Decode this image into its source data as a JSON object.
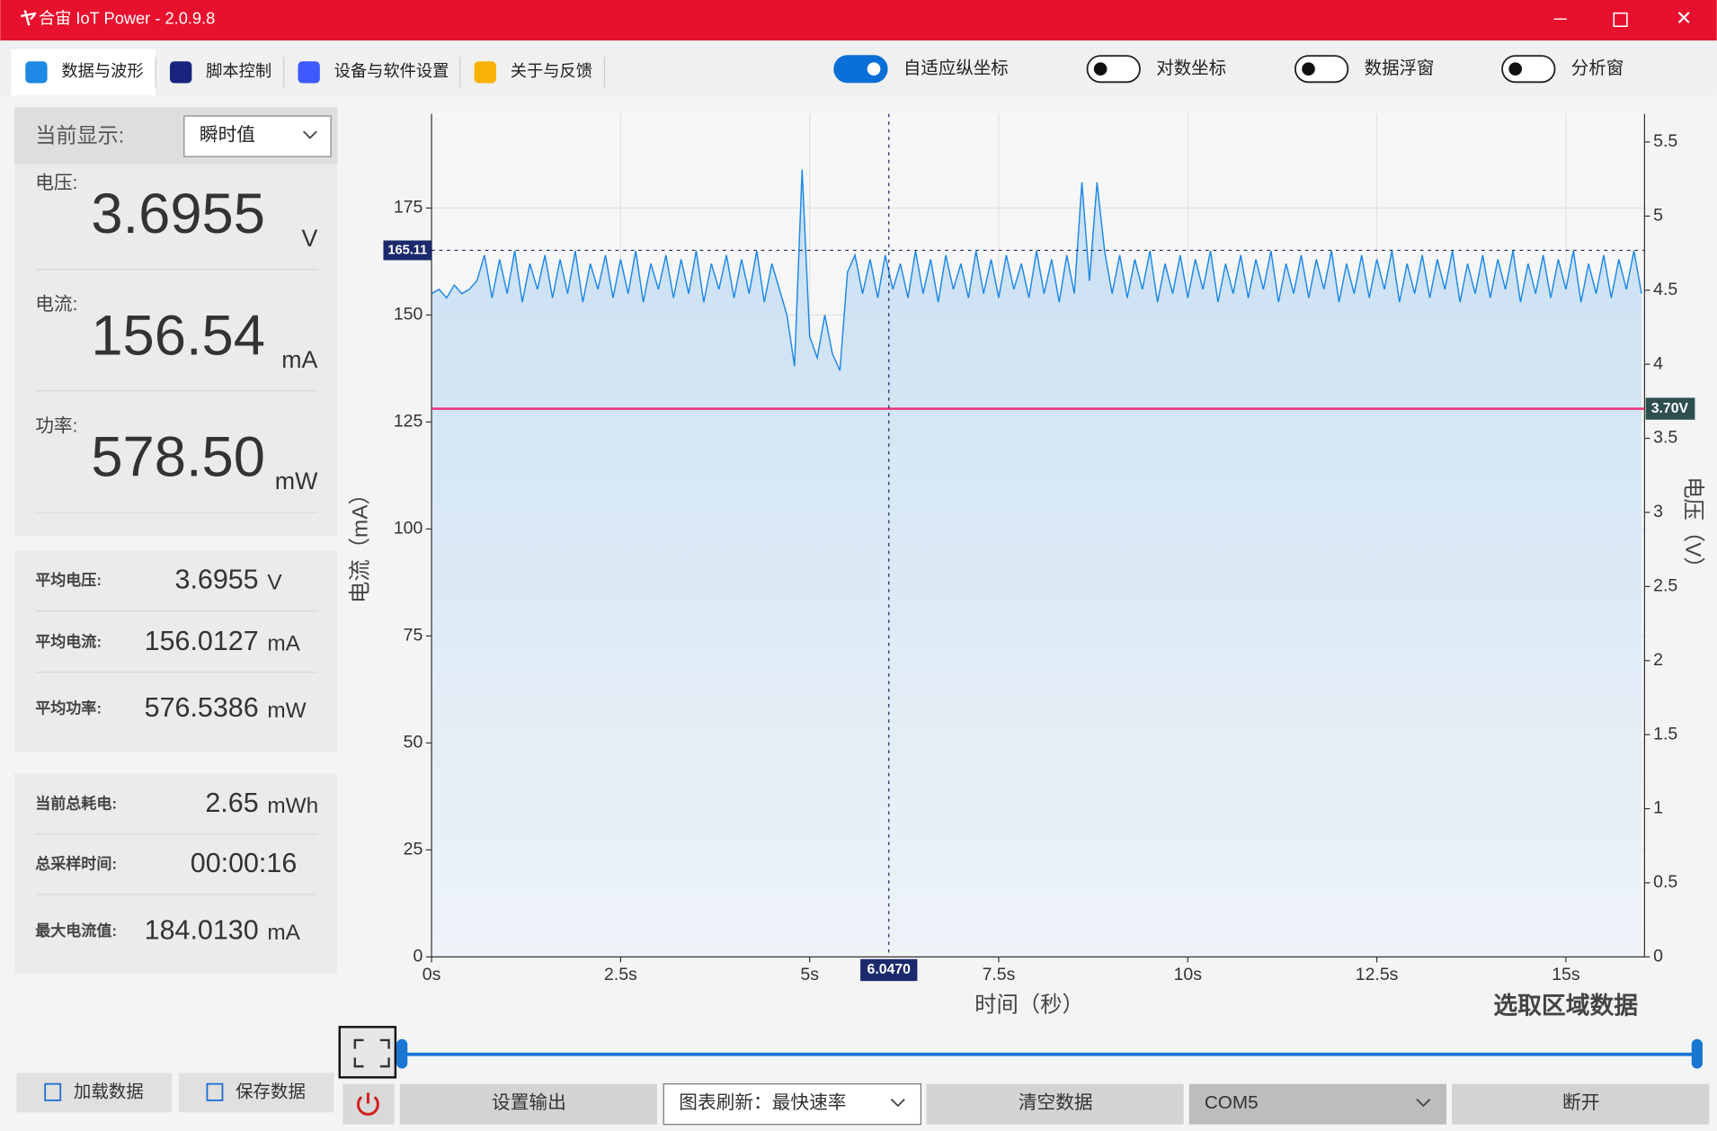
{
  "window": {
    "title": "合宙 IoT Power - 2.0.9.8"
  },
  "tabs": [
    "数据与波形",
    "脚本控制",
    "设备与软件设置",
    "关于与反馈"
  ],
  "toggles": [
    {
      "label": "自适应纵坐标",
      "on": true
    },
    {
      "label": "对数坐标",
      "on": false
    },
    {
      "label": "数据浮窗",
      "on": false
    },
    {
      "label": "分析窗",
      "on": false
    }
  ],
  "display": {
    "label": "当前显示:",
    "mode": "瞬时值"
  },
  "readings": [
    {
      "label": "电压:",
      "value": "3.6955",
      "unit": "V"
    },
    {
      "label": "电流:",
      "value": "156.54",
      "unit": "mA"
    },
    {
      "label": "功率:",
      "value": "578.50",
      "unit": "mW"
    }
  ],
  "averages": [
    {
      "label": "平均电压:",
      "value": "3.6955",
      "unit": "V"
    },
    {
      "label": "平均电流:",
      "value": "156.0127",
      "unit": "mA"
    },
    {
      "label": "平均功率:",
      "value": "576.5386",
      "unit": "mW"
    }
  ],
  "totals": [
    {
      "label": "当前总耗电:",
      "value": "2.65",
      "unit": "mWh"
    },
    {
      "label": "总采样时间:",
      "value": "00:00:16"
    },
    {
      "label": "最大电流值:",
      "value": "184.0130",
      "unit": "mA"
    }
  ],
  "side_buttons": [
    "加载数据",
    "保存数据"
  ],
  "bottom_bar": {
    "output": "设置输出",
    "refresh": "图表刷新：最快速率",
    "clear": "清空数据",
    "port": "COM5",
    "disconnect": "断开"
  },
  "chart_data": {
    "type": "line",
    "x_label": "时间（秒）",
    "y_label": "电流（mA）",
    "y2_label": "电压（V）",
    "select_label": "选取区域数据",
    "x": [
      0,
      0.1,
      0.2,
      0.3,
      0.4,
      0.5,
      0.6,
      0.7,
      0.8,
      0.9,
      1,
      1.1,
      1.2,
      1.3,
      1.4,
      1.5,
      1.6,
      1.7,
      1.8,
      1.9,
      2,
      2.1,
      2.2,
      2.3,
      2.4,
      2.5,
      2.6,
      2.7,
      2.8,
      2.9,
      3,
      3.1,
      3.2,
      3.3,
      3.4,
      3.5,
      3.6,
      3.7,
      3.8,
      3.9,
      4,
      4.1,
      4.2,
      4.3,
      4.4,
      4.5,
      4.6,
      4.7,
      4.8,
      4.9,
      5,
      5.1,
      5.2,
      5.3,
      5.4,
      5.5,
      5.6,
      5.7,
      5.8,
      5.9,
      6,
      6.1,
      6.2,
      6.3,
      6.4,
      6.5,
      6.6,
      6.7,
      6.8,
      6.9,
      7,
      7.1,
      7.2,
      7.3,
      7.4,
      7.5,
      7.6,
      7.7,
      7.8,
      7.9,
      8,
      8.1,
      8.2,
      8.3,
      8.4,
      8.5,
      8.6,
      8.7,
      8.8,
      8.9,
      9,
      9.1,
      9.2,
      9.3,
      9.4,
      9.5,
      9.6,
      9.7,
      9.8,
      9.9,
      10,
      10.1,
      10.2,
      10.3,
      10.4,
      10.5,
      10.6,
      10.7,
      10.8,
      10.9,
      11,
      11.1,
      11.2,
      11.3,
      11.4,
      11.5,
      11.6,
      11.7,
      11.8,
      11.9,
      12,
      12.1,
      12.2,
      12.3,
      12.4,
      12.5,
      12.6,
      12.7,
      12.8,
      12.9,
      13,
      13.1,
      13.2,
      13.3,
      13.4,
      13.5,
      13.6,
      13.7,
      13.8,
      13.9,
      14,
      14.1,
      14.2,
      14.3,
      14.4,
      14.5,
      14.6,
      14.7,
      14.8,
      14.9,
      15,
      15.1,
      15.2,
      15.3,
      15.4,
      15.5,
      15.6,
      15.7,
      15.8,
      15.9,
      16
    ],
    "series": [
      {
        "color": "#1e88e5",
        "values": [
          155,
          156,
          154,
          157,
          155,
          156,
          158,
          164,
          154,
          163,
          155,
          165,
          153,
          162,
          156,
          164,
          154,
          163,
          155,
          165,
          153,
          162,
          156,
          164,
          154,
          163,
          155,
          165,
          153,
          162,
          156,
          164,
          154,
          163,
          155,
          165,
          153,
          162,
          156,
          164,
          154,
          163,
          155,
          165,
          153,
          162,
          156,
          150,
          138,
          184,
          145,
          140,
          150,
          141,
          137,
          160,
          164,
          155,
          163,
          154,
          164,
          156,
          162,
          154,
          165,
          155,
          163,
          153,
          164,
          156,
          162,
          154,
          165,
          155,
          163,
          154,
          164,
          156,
          162,
          154,
          165,
          155,
          163,
          153,
          164,
          155,
          181,
          158,
          181,
          165,
          155,
          164,
          154,
          163,
          156,
          165,
          153,
          162,
          155,
          164,
          154,
          163,
          156,
          165,
          153,
          162,
          155,
          164,
          154,
          163,
          156,
          165,
          153,
          162,
          155,
          164,
          154,
          163,
          156,
          165,
          153,
          162,
          155,
          164,
          154,
          163,
          156,
          165,
          153,
          162,
          155,
          164,
          154,
          163,
          156,
          165,
          153,
          162,
          155,
          164,
          154,
          163,
          156,
          165,
          153,
          162,
          155,
          164,
          154,
          163,
          156,
          165,
          153,
          162,
          155,
          164,
          154,
          163,
          156,
          165,
          155
        ]
      }
    ],
    "xlim": [
      0,
      16.04
    ],
    "ylim": [
      0,
      197
    ],
    "y2lim": [
      0,
      5.69
    ],
    "xticks": [
      {
        "value": 0,
        "label": "0s"
      },
      {
        "value": 2.5,
        "label": "2.5s"
      },
      {
        "value": 5,
        "label": "5s"
      },
      {
        "value": 7.5,
        "label": "7.5s"
      },
      {
        "value": 10,
        "label": "10s"
      },
      {
        "value": 12.5,
        "label": "12.5s"
      },
      {
        "value": 15,
        "label": "15s"
      }
    ],
    "yticks": [
      0,
      25,
      50,
      75,
      100,
      125,
      150,
      175
    ],
    "y2ticks": [
      0,
      0.5,
      1,
      1.5,
      2,
      2.5,
      3,
      3.5,
      4,
      4.5,
      5,
      5.5
    ],
    "grid": true,
    "marker": {
      "value": 165.11,
      "label": "165.11"
    },
    "cursor": {
      "value": 6.047,
      "label": "6.0470"
    },
    "voltage_line": {
      "value": 3.7,
      "label": "3.70V",
      "axis": "y2",
      "color": "#e8327a"
    }
  }
}
